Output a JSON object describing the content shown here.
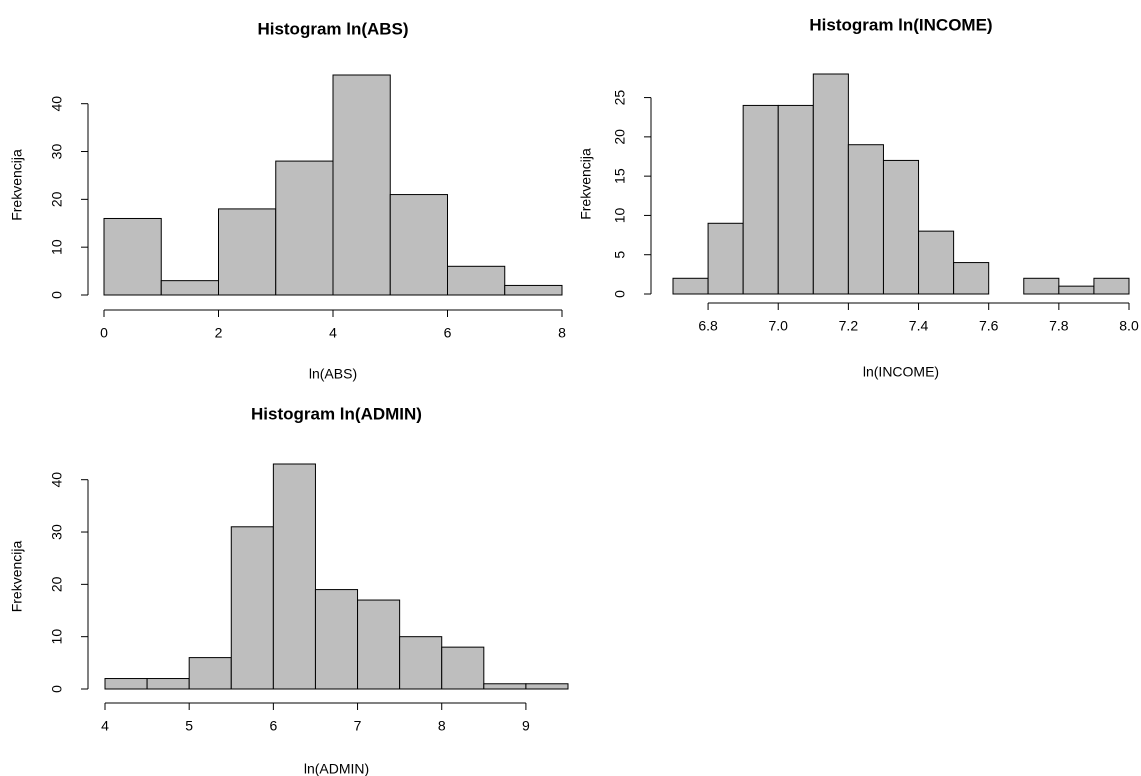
{
  "chart_data": [
    {
      "type": "histogram",
      "title": "Histogram ln(ABS)",
      "x_label": "ln(ABS)",
      "y_label": "Frekvencija",
      "bins": [
        0,
        1,
        2,
        3,
        4,
        5,
        6,
        7,
        8
      ],
      "values": [
        16,
        3,
        18,
        28,
        46,
        21,
        6,
        2
      ],
      "color": "#bebebe",
      "xlim": [
        0,
        8
      ],
      "xticks": [
        0,
        2,
        4,
        6,
        8
      ],
      "ylim": [
        0,
        46
      ],
      "yticks": [
        0,
        10,
        20,
        30,
        40
      ]
    },
    {
      "type": "histogram",
      "title": "Histogram ln(INCOME)",
      "x_label": "ln(INCOME)",
      "y_label": "Frekvencija",
      "bins": [
        6.7,
        6.8,
        6.9,
        7.0,
        7.1,
        7.2,
        7.3,
        7.4,
        7.5,
        7.6,
        7.7,
        7.8,
        7.9,
        8.0
      ],
      "values": [
        2,
        9,
        24,
        24,
        28,
        19,
        17,
        8,
        4,
        0,
        2,
        1,
        2
      ],
      "color": "#bebebe",
      "xlim": [
        6.7,
        8.0
      ],
      "xticks": [
        6.8,
        {
          "value": 7,
          "label": "7.0"
        },
        7.2,
        7.4,
        7.6,
        7.8,
        {
          "value": 8,
          "label": "8.0"
        }
      ],
      "ylim": [
        0,
        28
      ],
      "yticks": [
        0,
        5,
        10,
        15,
        20,
        25
      ]
    },
    {
      "type": "histogram",
      "title": "Histogram ln(ADMIN)",
      "x_label": "ln(ADMIN)",
      "y_label": "Frekvencija",
      "bins": [
        4,
        4.5,
        5,
        5.5,
        6,
        6.5,
        7,
        7.5,
        8,
        8.5,
        9,
        9.5
      ],
      "values": [
        2,
        2,
        6,
        31,
        43,
        19,
        17,
        10,
        8,
        1,
        1
      ],
      "color": "#bebebe",
      "xlim": [
        4,
        9.5
      ],
      "xticks": [
        4,
        5,
        6,
        7,
        8,
        9
      ],
      "ylim": [
        0,
        43
      ],
      "yticks": [
        0,
        10,
        20,
        30,
        40
      ]
    }
  ]
}
